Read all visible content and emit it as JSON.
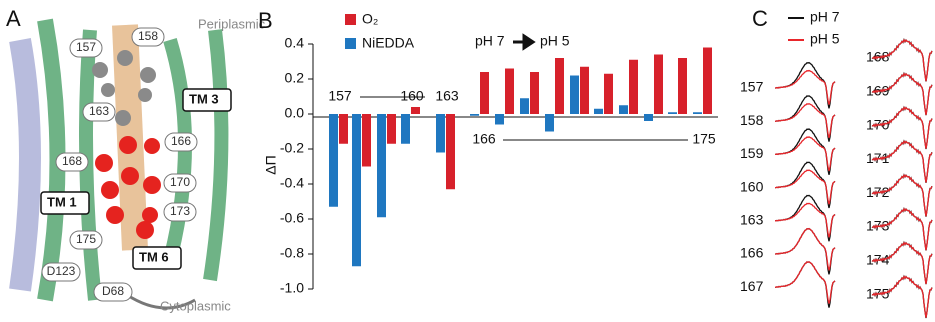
{
  "panel_a": {
    "label": "A",
    "periplasmic": "Periplasmic",
    "cytoplasmic": "Cytoplasmic",
    "helices": [
      "TM 3",
      "TM 1",
      "TM 6"
    ],
    "residues": [
      "157",
      "158",
      "163",
      "166",
      "168",
      "170",
      "173",
      "175",
      "D123",
      "D68"
    ]
  },
  "chart_data": {
    "type": "bar",
    "panel_label": "B",
    "y_label": "ΔΠ",
    "annotations": [
      "pH 7",
      "pH 5"
    ],
    "categories": [
      "157",
      null,
      null,
      "160",
      "163",
      "166",
      null,
      null,
      null,
      null,
      null,
      null,
      null,
      null,
      "175"
    ],
    "series": [
      {
        "name": "O₂",
        "color": "#d7212b",
        "values": [
          -0.17,
          -0.3,
          -0.17,
          0.04,
          -0.43,
          0.24,
          0.26,
          0.24,
          0.32,
          0.27,
          0.23,
          0.31,
          0.34,
          0.32,
          0.38
        ]
      },
      {
        "name": "NiEDDA",
        "color": "#1f77c0",
        "values": [
          -0.53,
          -0.87,
          -0.59,
          -0.17,
          -0.22,
          -0.01,
          -0.06,
          0.09,
          -0.1,
          0.22,
          0.03,
          0.05,
          -0.04,
          0.01,
          0.01
        ]
      }
    ],
    "ylim": [
      -1.0,
      0.4
    ],
    "yticks": [
      {
        "value": -1.0,
        "label": "-1.0"
      },
      {
        "value": -0.8,
        "label": "-0.8"
      },
      {
        "value": -0.6,
        "label": "-0.6"
      },
      {
        "value": -0.4,
        "label": "-0.4"
      },
      {
        "value": -0.2,
        "label": "-0.2"
      },
      {
        "value": 0,
        "label": "0.0"
      },
      {
        "value": 0.2,
        "label": "0.2"
      },
      {
        "value": 0.4,
        "label": "0.4"
      }
    ]
  },
  "panel_c": {
    "label": "C",
    "legend": [
      {
        "name": "pH 7",
        "color": "#111111"
      },
      {
        "name": "pH 5",
        "color": "#e8262b"
      }
    ],
    "left_labels": [
      "157",
      "158",
      "159",
      "160",
      "163",
      "166",
      "167"
    ],
    "right_labels": [
      "168",
      "169",
      "170",
      "171",
      "172",
      "173",
      "174",
      "175"
    ]
  }
}
